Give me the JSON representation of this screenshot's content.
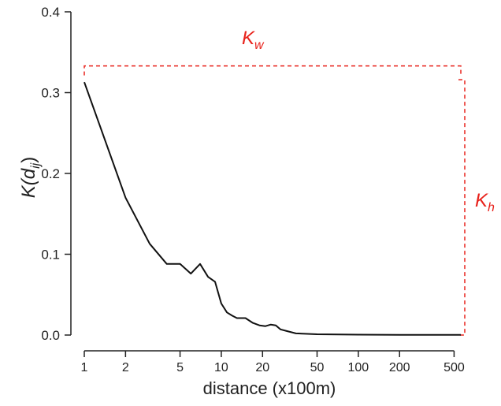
{
  "chart_data": {
    "type": "line",
    "xlabel": "distance (x100m)",
    "ylabel_main": "K(d",
    "ylabel_sub": "ij",
    "ylabel_close": ")",
    "x_scale": "log",
    "xlim": [
      1,
      560
    ],
    "ylim": [
      0,
      0.4
    ],
    "x_ticks": [
      1,
      2,
      5,
      10,
      20,
      50,
      100,
      200,
      500
    ],
    "x_tick_labels": [
      "1",
      "2",
      "5",
      "10",
      "20",
      "50",
      "100",
      "200",
      "500"
    ],
    "y_ticks": [
      0.0,
      0.1,
      0.2,
      0.3,
      0.4
    ],
    "y_tick_labels": [
      "0.0",
      "0.1",
      "0.2",
      "0.3",
      "0.4"
    ],
    "grid": false,
    "series": [
      {
        "color": "#111111",
        "x": [
          1,
          2,
          3,
          4,
          5,
          6,
          7,
          8,
          9,
          10,
          11,
          12,
          13,
          15,
          17,
          19,
          21,
          23,
          25,
          27,
          30,
          35,
          50,
          100,
          200,
          400,
          560
        ],
        "y": [
          0.313,
          0.17,
          0.113,
          0.088,
          0.088,
          0.076,
          0.088,
          0.072,
          0.066,
          0.039,
          0.028,
          0.024,
          0.021,
          0.021,
          0.015,
          0.012,
          0.011,
          0.013,
          0.012,
          0.007,
          0.005,
          0.002,
          0.001,
          0.0005,
          0.0003,
          0.0002,
          0.0002
        ]
      }
    ],
    "annotations": {
      "color": "#e8221b",
      "kw_main": "K",
      "kw_sub": "w",
      "kh_main": "K",
      "kh_sub": "h",
      "bracket_top_y": 0.333,
      "bracket_left_x": 1,
      "bracket_right_x": 560,
      "bracket_right_top_y": 0.316,
      "bracket_bottom_y": 0.0
    }
  }
}
